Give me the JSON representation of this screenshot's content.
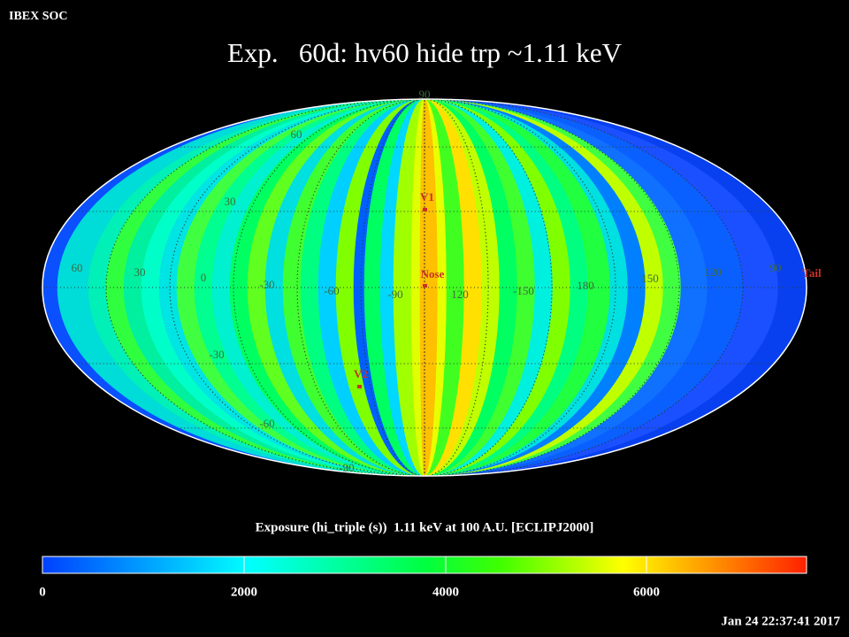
{
  "header": {
    "title": "IBEX SOC"
  },
  "title": "Exp.   60d: hv60 hide trp ~1.11 keV",
  "map": {
    "latitude_labels": [
      "90",
      "60",
      "30",
      "-30",
      "-60",
      "-90"
    ],
    "longitude_labels": [
      "60",
      "30",
      "0",
      "-30",
      "-60",
      "-90",
      "120",
      "-150",
      "180",
      "150",
      "120",
      "90"
    ],
    "markers": [
      "V1",
      "Nose",
      "Tail",
      "V2"
    ]
  },
  "colorbar": {
    "label": "Exposure (hi_triple (s))  1.11 keV at 100 A.U. [ECLIPJ2000]",
    "ticks": [
      "0",
      "2000",
      "4000",
      "6000"
    ]
  },
  "footer": {
    "timestamp": "Jan 24 22:37:41 2017"
  }
}
